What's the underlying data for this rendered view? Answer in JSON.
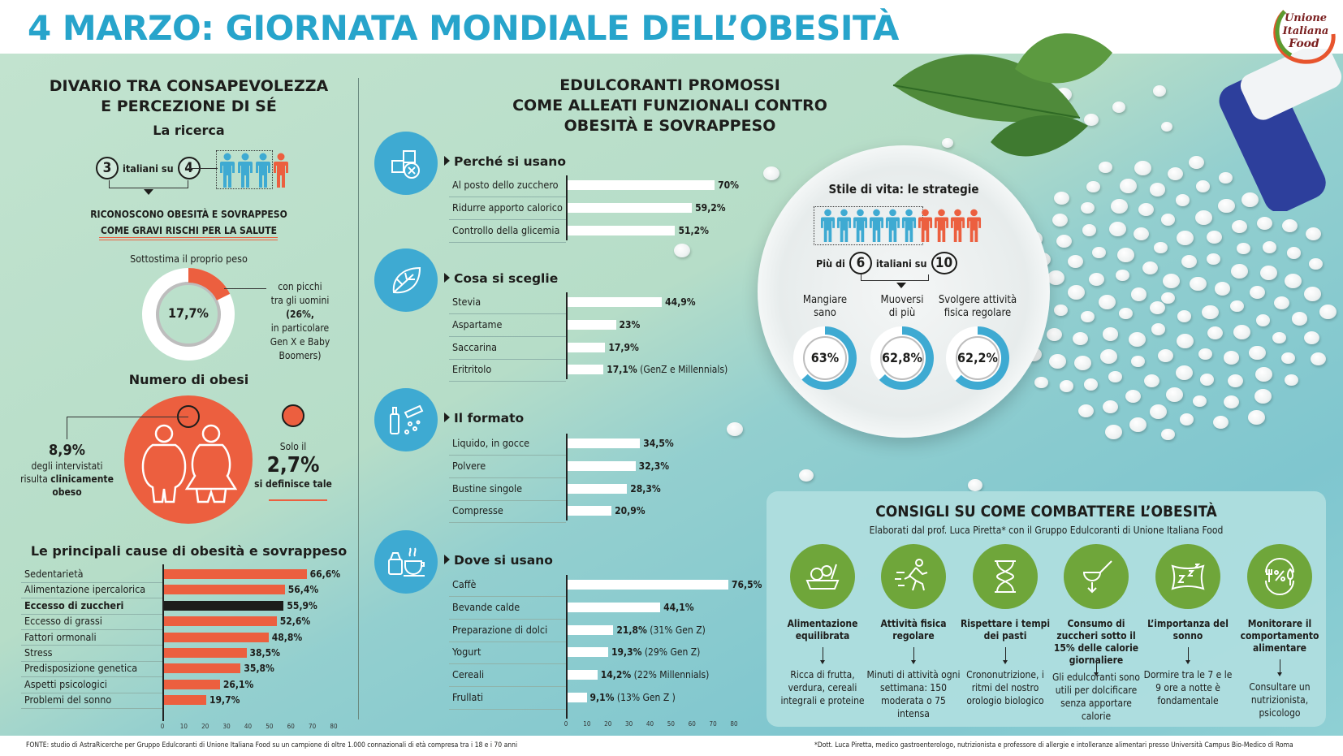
{
  "title": "4 MARZO: GIORNATA MONDIALE DELL’OBESITÀ",
  "logo": {
    "text": "Unione Italiana Food"
  },
  "colors": {
    "title": "#27a4cb",
    "orange": "#ec5f3f",
    "blue_icon": "#3eaad2",
    "green_icon": "#6fa63a",
    "people_blue": "#3eaad2"
  },
  "left": {
    "heading_line1": "DIVARIO TRA CONSAPEVOLEZZA",
    "heading_line2": "E PERCEZIONE DI SÉ",
    "research_title": "La ricerca",
    "ratio_num": "3",
    "ratio_text": "italiani su",
    "ratio_den": "4",
    "recognize_line1": "RICONOSCONO OBESITÀ E SOVRAPPESO",
    "recognize_line2": "COME GRAVI RISCHI PER LA SALUTE",
    "underestimate_label": "Sottostima il proprio peso",
    "underestimate_value": "17,7%",
    "underestimate_fraction": 0.177,
    "peak_note": [
      "con picchi",
      "tra gli uomini",
      "(26%,",
      "in particolare",
      "Gen X e Baby",
      "Boomers)"
    ],
    "obese_title": "Numero di obesi",
    "obese_value": "8,9%",
    "obese_text1": "degli intervistati",
    "obese_text2": "risulta",
    "obese_text2_bold": "clinicamente",
    "obese_text3": "obeso",
    "self_prefix": "Solo il",
    "self_value": "2,7%",
    "self_suffix": "si definisce tale"
  },
  "middle": {
    "heading_line1": "EDULCORANTI PROMOSSI",
    "heading_line2": "COME ALLEATI FUNZIONALI CONTRO",
    "heading_line3": "OBESITÀ E SOVRAPPESO"
  },
  "right": {
    "lifestyle_title": "Stile di vita: le strategie",
    "ratio_prefix": "Più di",
    "ratio_num": "6",
    "ratio_text": "italiani su",
    "ratio_den": "10",
    "strategies": [
      {
        "label1": "Mangiare",
        "label2": "sano",
        "value": "63%",
        "fraction": 0.63
      },
      {
        "label1": "Muoversi",
        "label2": "di più",
        "value": "62,8%",
        "fraction": 0.628
      },
      {
        "label1": "Svolgere attività",
        "label2": "fisica regolare",
        "value": "62,2%",
        "fraction": 0.622
      }
    ]
  },
  "tips": {
    "title": "CONSIGLI SU COME COMBATTERE L’OBESITÀ",
    "subtitle": "Elaborati dal prof. Luca Piretta* con il Gruppo Edulcoranti di Unione Italiana Food",
    "items": [
      {
        "icon": "salad-bowl-icon",
        "title": "Alimentazione equilibrata",
        "desc": "Ricca di frutta, verdura, cereali integrali e proteine"
      },
      {
        "icon": "running-person-icon",
        "title": "Attività fisica regolare",
        "desc": "Minuti di attività ogni settimana: 150 moderata o 75 intensa"
      },
      {
        "icon": "hourglass-icon",
        "title": "Rispettare i tempi dei pasti",
        "desc": "Crononutrizione, i ritmi del nostro orologio biologico"
      },
      {
        "icon": "sugar-spoon-icon",
        "title": "Consumo di zuccheri sotto il 15% delle calorie giornaliere",
        "desc": "Gli edulcoranti sono utili per dolcificare senza apportare calorie"
      },
      {
        "icon": "pillow-sleep-icon",
        "title": "L’importanza del sonno",
        "desc": "Dormire tra le 7 e le 9 ore a notte è fondamentale"
      },
      {
        "icon": "plate-percent-icon",
        "title": "Monitorare il comportamento alimentare",
        "desc": "Consultare un nutrizionista, psicologo"
      }
    ]
  },
  "footer": {
    "source": "FONTE: studio di AstraRicerche per Gruppo Edulcoranti di Unione Italiana Food su un campione di oltre 1.000 connazionali di età compresa tra i 18 e i 70 anni",
    "note": "*Dott. Luca Piretta, medico gastroenterologo, nutrizionista e professore di allergie e intolleranze alimentari presso Università Campus Bio-Medico di Roma"
  },
  "chart_data": [
    {
      "type": "bar",
      "orientation": "horizontal",
      "title": "Le principali cause di obesità e sovrappeso",
      "categories": [
        "Sedentarietà",
        "Alimentazione ipercalorica",
        "Eccesso di zuccheri",
        "Eccesso di grassi",
        "Fattori ormonali",
        "Stress",
        "Predisposizione genetica",
        "Aspetti psicologici",
        "Problemi del sonno"
      ],
      "values": [
        66.6,
        56.4,
        55.9,
        52.6,
        48.8,
        38.5,
        35.8,
        26.1,
        19.7
      ],
      "labels": [
        "66,6%",
        "56,4%",
        "55,9%",
        "52,6%",
        "48,8%",
        "38,5%",
        "35,8%",
        "26,1%",
        "19,7%"
      ],
      "highlight": "Eccesso di zuccheri",
      "bar_color": "#ec5f3f",
      "highlight_color": "#1d1d1b",
      "xlim": [
        0,
        80
      ],
      "xticks": [
        "0",
        "10",
        "20",
        "30",
        "40",
        "50",
        "60",
        "70",
        "80"
      ]
    },
    {
      "type": "bar",
      "orientation": "horizontal",
      "title": "Perché si usano",
      "icon": "sugar-cubes-icon",
      "categories": [
        "Al posto dello zucchero",
        "Ridurre apporto calorico",
        "Controllo della glicemia"
      ],
      "values": [
        70,
        59.2,
        51.2
      ],
      "labels": [
        "70%",
        "59,2%",
        "51,2%"
      ],
      "notes": [
        "",
        "",
        ""
      ],
      "xlim": [
        0,
        80
      ]
    },
    {
      "type": "bar",
      "orientation": "horizontal",
      "title": "Cosa si sceglie",
      "icon": "stevia-leaf-icon",
      "categories": [
        "Stevia",
        "Aspartame",
        "Saccarina",
        "Eritritolo"
      ],
      "values": [
        44.9,
        23,
        17.9,
        17.1
      ],
      "labels": [
        "44,9%",
        "23%",
        "17,9%",
        "17,1%"
      ],
      "notes": [
        "",
        "",
        "",
        "(GenZ e Millennials)"
      ],
      "xlim": [
        0,
        80
      ]
    },
    {
      "type": "bar",
      "orientation": "horizontal",
      "title": "Il formato",
      "icon": "dropper-powder-icon",
      "categories": [
        "Liquido, in gocce",
        "Polvere",
        "Bustine singole",
        "Compresse"
      ],
      "values": [
        34.5,
        32.3,
        28.3,
        20.9
      ],
      "labels": [
        "34,5%",
        "32,3%",
        "28,3%",
        "20,9%"
      ],
      "notes": [
        "",
        "",
        "",
        ""
      ],
      "xlim": [
        0,
        80
      ]
    },
    {
      "type": "bar",
      "orientation": "horizontal",
      "title": "Dove si usano",
      "icon": "coffee-cup-icon",
      "categories": [
        "Caffè",
        "Bevande calde",
        "Preparazione di dolci",
        "Yogurt",
        "Cereali",
        "Frullati"
      ],
      "values": [
        76.5,
        44.1,
        21.8,
        19.3,
        14.2,
        9.1
      ],
      "labels": [
        "76,5%",
        "44,1%",
        "21,8%",
        "19,3%",
        "14,2%",
        "9,1%"
      ],
      "notes": [
        "",
        "",
        "(31% Gen Z)",
        "(29% Gen Z)",
        "(22% Millennials)",
        "(13% Gen Z )"
      ],
      "xlim": [
        0,
        80
      ],
      "xticks": [
        "0",
        "10",
        "20",
        "30",
        "40",
        "50",
        "60",
        "70",
        "80"
      ]
    }
  ]
}
